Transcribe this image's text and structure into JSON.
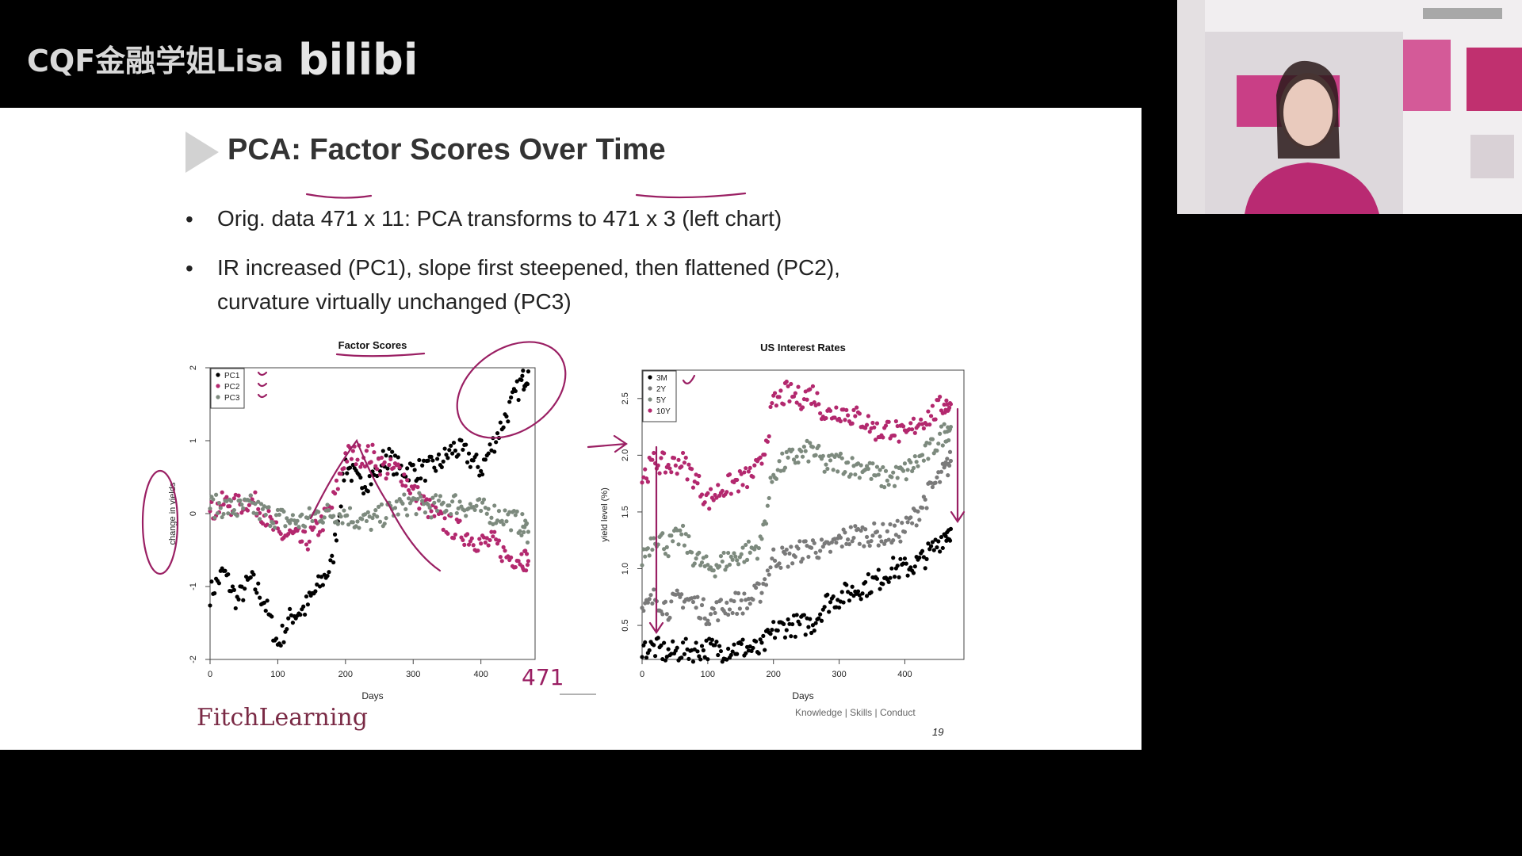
{
  "watermark": {
    "text": "CQF金融学姐Lisa",
    "logo_text": "bilibili"
  },
  "slide": {
    "title": "PCA: Factor Scores Over Time",
    "bullets": [
      "Orig. data 471 x 11: PCA transforms to 471 x 3 (left chart)",
      "IR increased (PC1), slope first steepened, then flattened (PC2),",
      "curvature virtually unchanged (PC3)"
    ],
    "footer_logo": "FitchLearning",
    "footer_tag": "Knowledge | Skills | Conduct",
    "page_number": "19",
    "annotation": "471"
  },
  "colors": {
    "black": "#000000",
    "magenta": "#b3286e",
    "grey": "#7d8a7e",
    "ink": "#9a1f63"
  },
  "chart_data": [
    {
      "type": "scatter",
      "title": "Factor Scores",
      "xlabel": "Days",
      "ylabel": "change in yields",
      "xlim": [
        0,
        480
      ],
      "ylim": [
        -2,
        2
      ],
      "xticks": [
        "0",
        "100",
        "200",
        "300",
        "400"
      ],
      "yticks": [
        "-2",
        "-1",
        "0",
        "1",
        "2"
      ],
      "legend_position": "top-left",
      "series": [
        {
          "name": "PC1",
          "color": "#000000",
          "x": [
            0,
            20,
            40,
            60,
            80,
            100,
            120,
            140,
            160,
            180,
            200,
            220,
            240,
            260,
            280,
            300,
            320,
            340,
            360,
            380,
            400,
            420,
            440,
            460,
            470
          ],
          "y": [
            -1.1,
            -0.8,
            -1.2,
            -0.9,
            -1.2,
            -1.8,
            -1.4,
            -1.3,
            -1.0,
            -0.7,
            0.7,
            0.4,
            0.5,
            0.8,
            0.6,
            0.6,
            0.6,
            0.7,
            0.9,
            0.8,
            0.6,
            1.0,
            1.4,
            1.8,
            1.95
          ]
        },
        {
          "name": "PC2",
          "color": "#b3286e",
          "x": [
            0,
            20,
            40,
            60,
            80,
            100,
            120,
            140,
            160,
            180,
            200,
            220,
            240,
            260,
            280,
            300,
            320,
            340,
            360,
            380,
            400,
            420,
            440,
            460,
            470
          ],
          "y": [
            0.0,
            0.15,
            0.1,
            0.2,
            0.0,
            -0.3,
            -0.3,
            -0.4,
            -0.2,
            0.1,
            0.8,
            0.8,
            0.8,
            0.6,
            0.6,
            0.3,
            0.1,
            -0.1,
            -0.2,
            -0.3,
            -0.4,
            -0.4,
            -0.6,
            -0.6,
            -0.65
          ]
        },
        {
          "name": "PC3",
          "color": "#7d8a7e",
          "x": [
            0,
            20,
            40,
            60,
            80,
            100,
            120,
            140,
            160,
            180,
            200,
            220,
            240,
            260,
            280,
            300,
            320,
            340,
            360,
            380,
            400,
            420,
            440,
            460,
            470
          ],
          "y": [
            0.1,
            0.1,
            0.05,
            0.1,
            0.0,
            -0.05,
            -0.1,
            -0.1,
            0.0,
            0.0,
            0.0,
            -0.1,
            -0.1,
            0.0,
            0.1,
            0.15,
            0.1,
            0.1,
            0.15,
            0.1,
            0.05,
            0.0,
            -0.05,
            -0.15,
            -0.25
          ]
        }
      ]
    },
    {
      "type": "scatter",
      "title": "US Interest Rates",
      "xlabel": "Days",
      "ylabel": "yield level (%)",
      "xlim": [
        0,
        490
      ],
      "ylim": [
        0.2,
        2.75
      ],
      "xticks": [
        "0",
        "100",
        "200",
        "300",
        "400"
      ],
      "yticks": [
        "0.5",
        "1.0",
        "1.5",
        "2.0",
        "2.5"
      ],
      "legend_position": "top-left",
      "series": [
        {
          "name": "3M",
          "color": "#000000",
          "x": [
            0,
            20,
            40,
            60,
            80,
            100,
            120,
            140,
            160,
            180,
            200,
            220,
            240,
            260,
            280,
            300,
            320,
            340,
            360,
            380,
            400,
            420,
            440,
            460,
            470
          ],
          "y": [
            0.3,
            0.3,
            0.25,
            0.28,
            0.28,
            0.3,
            0.28,
            0.3,
            0.3,
            0.28,
            0.45,
            0.5,
            0.5,
            0.52,
            0.7,
            0.75,
            0.8,
            0.85,
            0.9,
            1.0,
            1.0,
            1.05,
            1.15,
            1.3,
            1.35
          ]
        },
        {
          "name": "2Y",
          "color": "#7a7a7a",
          "x": [
            0,
            20,
            40,
            60,
            80,
            100,
            120,
            140,
            160,
            180,
            200,
            220,
            240,
            260,
            280,
            300,
            320,
            340,
            360,
            380,
            400,
            420,
            440,
            460,
            470
          ],
          "y": [
            0.6,
            0.75,
            0.65,
            0.75,
            0.7,
            0.6,
            0.65,
            0.7,
            0.7,
            0.8,
            1.1,
            1.1,
            1.15,
            1.2,
            1.15,
            1.25,
            1.3,
            1.3,
            1.3,
            1.3,
            1.35,
            1.5,
            1.7,
            1.85,
            1.95
          ]
        },
        {
          "name": "5Y",
          "color": "#7d8a7e",
          "x": [
            0,
            20,
            40,
            60,
            80,
            100,
            120,
            140,
            160,
            180,
            200,
            220,
            240,
            260,
            280,
            300,
            320,
            340,
            360,
            380,
            400,
            420,
            440,
            460,
            470
          ],
          "y": [
            1.1,
            1.3,
            1.2,
            1.3,
            1.1,
            1.0,
            1.05,
            1.1,
            1.15,
            1.2,
            1.85,
            1.95,
            2.0,
            2.05,
            1.9,
            1.95,
            1.9,
            1.9,
            1.8,
            1.8,
            1.85,
            1.95,
            2.05,
            2.2,
            2.25
          ]
        },
        {
          "name": "10Y",
          "color": "#b3286e",
          "x": [
            0,
            20,
            40,
            60,
            80,
            100,
            120,
            140,
            160,
            180,
            200,
            220,
            240,
            260,
            280,
            300,
            320,
            340,
            360,
            380,
            400,
            420,
            440,
            460,
            470
          ],
          "y": [
            1.8,
            1.95,
            1.9,
            1.95,
            1.8,
            1.6,
            1.7,
            1.75,
            1.8,
            1.9,
            2.45,
            2.55,
            2.5,
            2.55,
            2.35,
            2.4,
            2.35,
            2.3,
            2.2,
            2.25,
            2.15,
            2.3,
            2.35,
            2.45,
            2.45
          ]
        }
      ]
    }
  ]
}
